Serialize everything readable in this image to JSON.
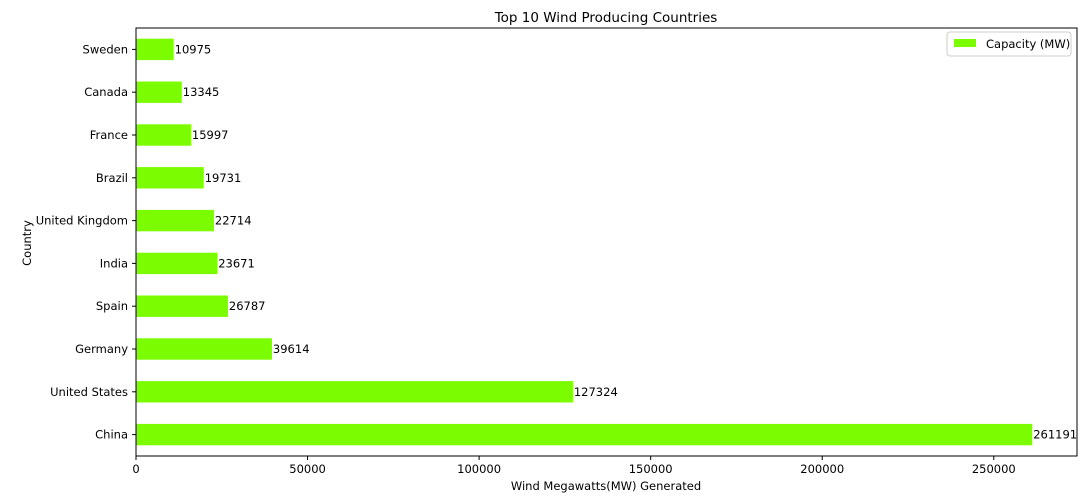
{
  "chart_data": {
    "type": "bar",
    "orientation": "horizontal",
    "title": "Top 10 Wind Producing Countries",
    "xlabel": "Wind Megawatts(MW) Generated",
    "ylabel": "Country",
    "categories": [
      "China",
      "United States",
      "Germany",
      "Spain",
      "India",
      "United Kingdom",
      "Brazil",
      "France",
      "Canada",
      "Sweden"
    ],
    "series": [
      {
        "name": "Capacity (MW)",
        "values": [
          261191,
          127324,
          39614,
          26787,
          23671,
          22714,
          19731,
          15997,
          13345,
          10975
        ]
      }
    ],
    "data_labels": [
      "261191",
      "127324",
      "39614",
      "26787",
      "23671",
      "22714",
      "19731",
      "15997",
      "13345",
      "10975"
    ],
    "xlim": [
      0,
      274250
    ],
    "xticks": [
      0,
      50000,
      100000,
      150000,
      200000,
      250000
    ],
    "xtick_labels": [
      "0",
      "50000",
      "100000",
      "150000",
      "200000",
      "250000"
    ],
    "grid": false,
    "legend_position": "top-right",
    "colors": {
      "bar": "#7cfc00",
      "axis": "#000000"
    }
  }
}
